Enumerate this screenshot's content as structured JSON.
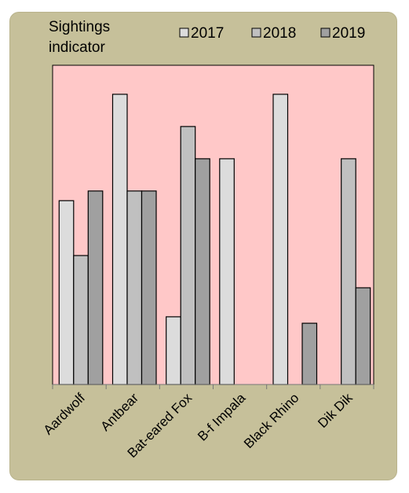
{
  "chart_data": {
    "type": "bar",
    "ylabel": "Sightings indicator",
    "ylabel_lines": [
      "Sightings",
      "indicator"
    ],
    "categories": [
      "Aardwolf",
      "Antbear",
      "Bat-eared Fox",
      "B-f Impala",
      "Black Rhino",
      "Dik Dik"
    ],
    "series": [
      {
        "name": "2017",
        "values": [
          5.7,
          9.0,
          2.1,
          7.0,
          9.0,
          0
        ]
      },
      {
        "name": "2018",
        "values": [
          4.0,
          6.0,
          8.0,
          0,
          0,
          7.0
        ]
      },
      {
        "name": "2019",
        "values": [
          6.0,
          6.0,
          7.0,
          0,
          1.9,
          3.0
        ]
      }
    ],
    "ylim": [
      0,
      9.9
    ],
    "grid": false,
    "legend_position": "top-right",
    "colors": {
      "plot_bg": "#ffc8c8",
      "frame_bg": "#c6c09a",
      "series": [
        "#dcdcdc",
        "#c0c0c0",
        "#a0a0a0"
      ],
      "bar_stroke": "#000000"
    }
  }
}
